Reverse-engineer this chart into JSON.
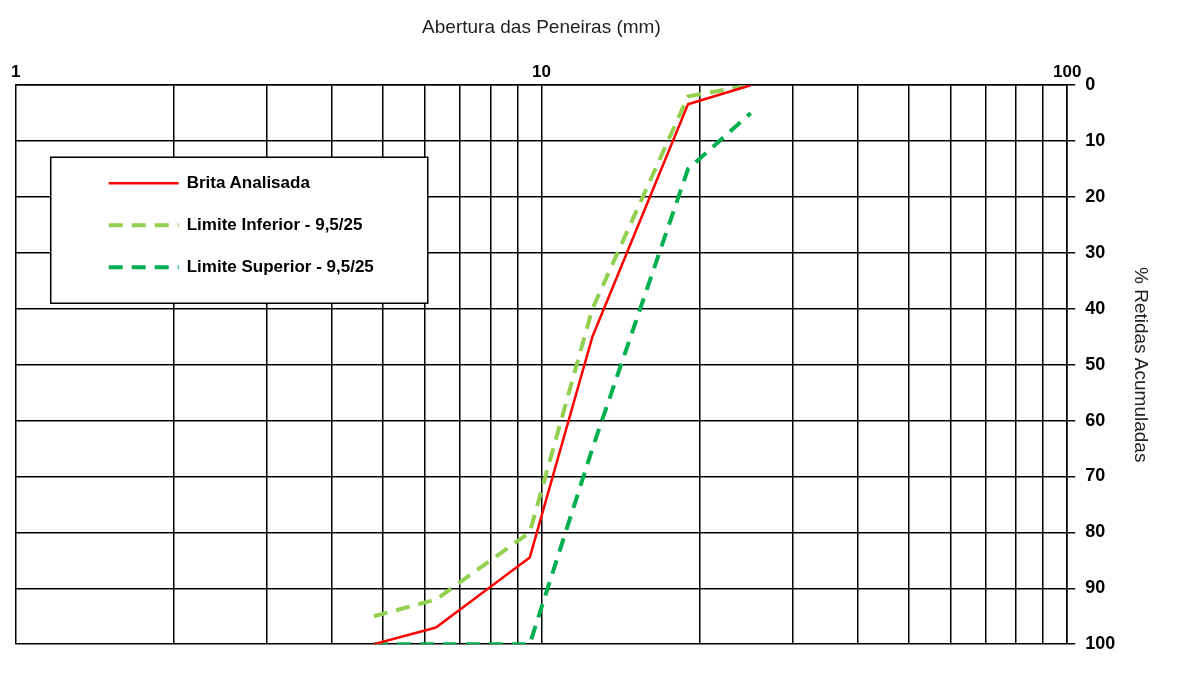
{
  "chart_data": {
    "type": "line",
    "xlabel": "Abertura das Peneiras (mm)",
    "ylabel": "% Retidas Acumuladas",
    "x": [
      4.8,
      6.3,
      9.5,
      12.5,
      19,
      25
    ],
    "series": [
      {
        "name": "Brita Analisada",
        "color": "#ff0000",
        "line_style": "solid",
        "values": [
          100,
          97,
          84.5,
          45,
          3.4,
          0
        ]
      },
      {
        "name": "Limite Inferior - 9,5/25",
        "color": "#92d050",
        "line_style": "dashed",
        "values": [
          95,
          92,
          80,
          40,
          2,
          0
        ]
      },
      {
        "name": "Limite Superior - 9,5/25",
        "color": "#00b050",
        "line_style": "dashed",
        "values": [
          100,
          100,
          100,
          65,
          15,
          5
        ]
      }
    ],
    "log": "x",
    "xlim": [
      1,
      100
    ],
    "xticks": [
      1,
      {
        "value": 2,
        "label": null
      },
      {
        "value": 3,
        "label": null
      },
      {
        "value": 4,
        "label": null
      },
      {
        "value": 5,
        "label": null
      },
      {
        "value": 6,
        "label": null
      },
      {
        "value": 7,
        "label": null
      },
      {
        "value": 8,
        "label": null
      },
      {
        "value": 9,
        "label": null
      },
      10,
      {
        "value": 20,
        "label": null
      },
      {
        "value": 30,
        "label": null
      },
      {
        "value": 40,
        "label": null
      },
      {
        "value": 50,
        "label": null
      },
      {
        "value": 60,
        "label": null
      },
      {
        "value": 70,
        "label": null
      },
      {
        "value": 80,
        "label": null
      },
      {
        "value": 90,
        "label": null
      },
      100
    ],
    "ylim": [
      100,
      0
    ],
    "yticks": [
      0,
      10,
      20,
      30,
      40,
      50,
      60,
      70,
      80,
      90,
      100
    ],
    "grid": true,
    "legend": "top left",
    "marker": "none"
  }
}
